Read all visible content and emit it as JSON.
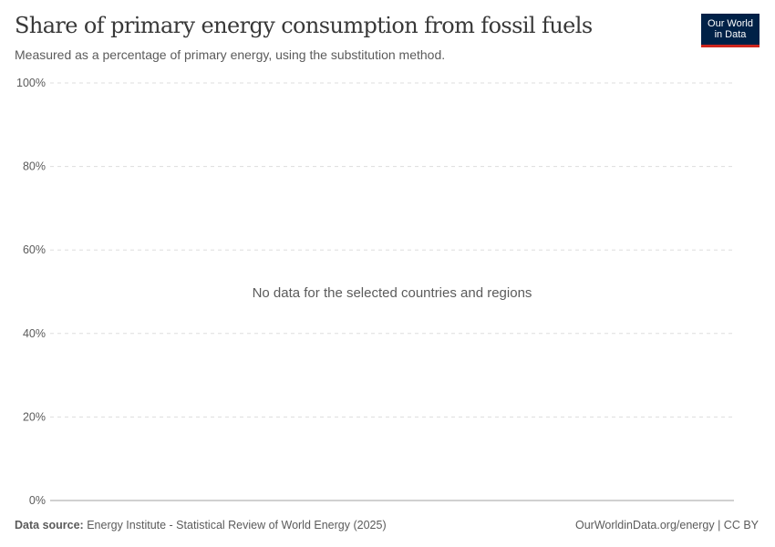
{
  "header": {
    "title": "Share of primary energy consumption from fossil fuels",
    "subtitle": "Measured as a percentage of primary energy, using the substitution method.",
    "logo_text": "Our World in Data",
    "logo_line1": "Our World",
    "logo_line2": "in Data"
  },
  "chart_data": {
    "type": "line",
    "title": "Share of primary energy consumption from fossil fuels",
    "ylim": [
      0,
      100
    ],
    "y_ticks": [
      0,
      20,
      40,
      60,
      80,
      100
    ],
    "y_tick_labels": [
      "0%",
      "20%",
      "40%",
      "60%",
      "80%",
      "100%"
    ],
    "grid": true,
    "series": [],
    "message": "No data for the selected countries and regions"
  },
  "footer": {
    "source_label": "Data source:",
    "source_text": "Energy Institute - Statistical Review of World Energy (2025)",
    "url_license": "OurWorldinData.org/energy | CC BY"
  },
  "colors": {
    "logo_bg": "#002147",
    "logo_accent": "#ce261e",
    "grid": "#dddddd",
    "axis": "#a0a0a0",
    "text": "#5b5b5b"
  }
}
